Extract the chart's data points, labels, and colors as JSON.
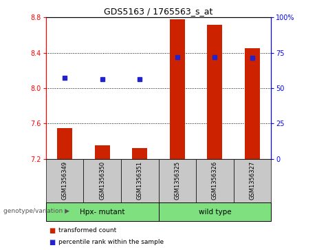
{
  "title": "GDS5163 / 1765563_s_at",
  "samples": [
    "GSM1356349",
    "GSM1356350",
    "GSM1356351",
    "GSM1356325",
    "GSM1356326",
    "GSM1356327"
  ],
  "group1_label": "Hpx- mutant",
  "group2_label": "wild type",
  "transformed_counts": [
    7.55,
    7.35,
    7.32,
    8.78,
    8.72,
    8.45
  ],
  "percentile_ranks_y": [
    8.12,
    8.1,
    8.1,
    8.35,
    8.35,
    8.34
  ],
  "y_min": 7.2,
  "y_max": 8.8,
  "y_ticks": [
    7.2,
    7.6,
    8.0,
    8.4,
    8.8
  ],
  "y2_ticks": [
    0,
    25,
    50,
    75,
    100
  ],
  "bar_color": "#CC2200",
  "dot_color": "#2222CC",
  "bar_width": 0.4,
  "sample_bg": "#C8C8C8",
  "green_bg": "#7EE07E",
  "legend_red_label": "transformed count",
  "legend_blue_label": "percentile rank within the sample",
  "genotype_label": "genotype/variation"
}
